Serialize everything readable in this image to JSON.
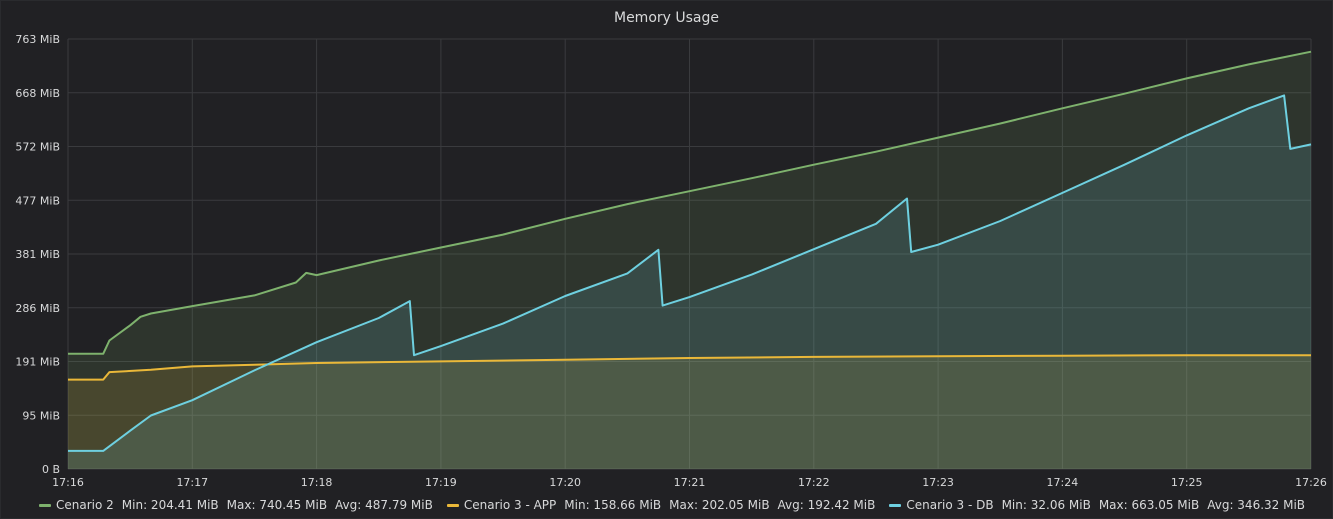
{
  "panel": {
    "title": "Memory Usage"
  },
  "chart_data": {
    "type": "area",
    "title": "Memory Usage",
    "xlabel": "",
    "ylabel": "",
    "x_ticks": [
      "17:16",
      "17:17",
      "17:18",
      "17:19",
      "17:20",
      "17:21",
      "17:22",
      "17:23",
      "17:24",
      "17:25",
      "17:26"
    ],
    "y_ticks": [
      "0 B",
      "95 MiB",
      "191 MiB",
      "286 MiB",
      "381 MiB",
      "477 MiB",
      "572 MiB",
      "668 MiB",
      "763 MiB"
    ],
    "x_range": [
      "17:16",
      "17:26"
    ],
    "ylim": [
      0,
      763
    ],
    "grid": true,
    "legend_position": "bottom",
    "colors": {
      "background": "#212124",
      "grid": "#3a3b3e"
    },
    "series": [
      {
        "name": "Cenario 2",
        "color": "#7eb26d",
        "stats": {
          "min": "Min: 204.41 MiB",
          "max": "Max: 740.45 MiB",
          "avg": "Avg: 487.79 MiB"
        },
        "points": [
          [
            "17:16:00",
            204.4
          ],
          [
            "17:16:10",
            204.4
          ],
          [
            "17:16:17",
            204.4
          ],
          [
            "17:16:20",
            228
          ],
          [
            "17:16:30",
            255
          ],
          [
            "17:16:35",
            270
          ],
          [
            "17:16:40",
            276
          ],
          [
            "17:17:00",
            289
          ],
          [
            "17:17:30",
            308
          ],
          [
            "17:17:50",
            331
          ],
          [
            "17:17:55",
            348
          ],
          [
            "17:18:00",
            344
          ],
          [
            "17:18:30",
            370
          ],
          [
            "17:19:00",
            393
          ],
          [
            "17:19:30",
            416
          ],
          [
            "17:20:00",
            444
          ],
          [
            "17:20:30",
            470
          ],
          [
            "17:21:00",
            493
          ],
          [
            "17:21:30",
            516
          ],
          [
            "17:22:00",
            540
          ],
          [
            "17:22:30",
            563
          ],
          [
            "17:23:00",
            588
          ],
          [
            "17:23:30",
            613
          ],
          [
            "17:24:00",
            640
          ],
          [
            "17:24:30",
            666
          ],
          [
            "17:25:00",
            693
          ],
          [
            "17:25:30",
            718
          ],
          [
            "17:26:00",
            740.4
          ]
        ]
      },
      {
        "name": "Cenario 3 - APP",
        "color": "#eab839",
        "stats": {
          "min": "Min: 158.66 MiB",
          "max": "Max: 202.05 MiB",
          "avg": "Avg: 192.42 MiB"
        },
        "points": [
          [
            "17:16:00",
            158.7
          ],
          [
            "17:16:10",
            158.7
          ],
          [
            "17:16:17",
            158.7
          ],
          [
            "17:16:20",
            172
          ],
          [
            "17:16:40",
            176
          ],
          [
            "17:17:00",
            182
          ],
          [
            "17:17:30",
            185
          ],
          [
            "17:18:00",
            188
          ],
          [
            "17:19:00",
            191
          ],
          [
            "17:20:00",
            194
          ],
          [
            "17:21:00",
            197
          ],
          [
            "17:22:00",
            199
          ],
          [
            "17:23:00",
            200
          ],
          [
            "17:24:00",
            201
          ],
          [
            "17:25:00",
            202
          ],
          [
            "17:26:00",
            202
          ]
        ]
      },
      {
        "name": "Cenario 3 - DB",
        "color": "#6ed0e0",
        "stats": {
          "min": "Min: 32.06 MiB",
          "max": "Max: 663.05 MiB",
          "avg": "Avg: 346.32 MiB"
        },
        "points": [
          [
            "17:16:00",
            32.1
          ],
          [
            "17:16:17",
            32.1
          ],
          [
            "17:16:30",
            68
          ],
          [
            "17:16:40",
            95
          ],
          [
            "17:17:00",
            122
          ],
          [
            "17:17:30",
            175
          ],
          [
            "17:18:00",
            225
          ],
          [
            "17:18:30",
            268
          ],
          [
            "17:18:45",
            298
          ],
          [
            "17:18:47",
            202
          ],
          [
            "17:19:00",
            218
          ],
          [
            "17:19:30",
            258
          ],
          [
            "17:20:00",
            307
          ],
          [
            "17:20:30",
            347
          ],
          [
            "17:20:45",
            389
          ],
          [
            "17:20:47",
            290
          ],
          [
            "17:21:00",
            305
          ],
          [
            "17:21:30",
            345
          ],
          [
            "17:22:00",
            390
          ],
          [
            "17:22:30",
            435
          ],
          [
            "17:22:45",
            480
          ],
          [
            "17:22:47",
            385
          ],
          [
            "17:23:00",
            398
          ],
          [
            "17:23:30",
            440
          ],
          [
            "17:24:00",
            490
          ],
          [
            "17:24:30",
            540
          ],
          [
            "17:25:00",
            592
          ],
          [
            "17:25:30",
            640
          ],
          [
            "17:25:47",
            663
          ],
          [
            "17:25:50",
            568
          ],
          [
            "17:26:00",
            576
          ]
        ]
      }
    ]
  }
}
